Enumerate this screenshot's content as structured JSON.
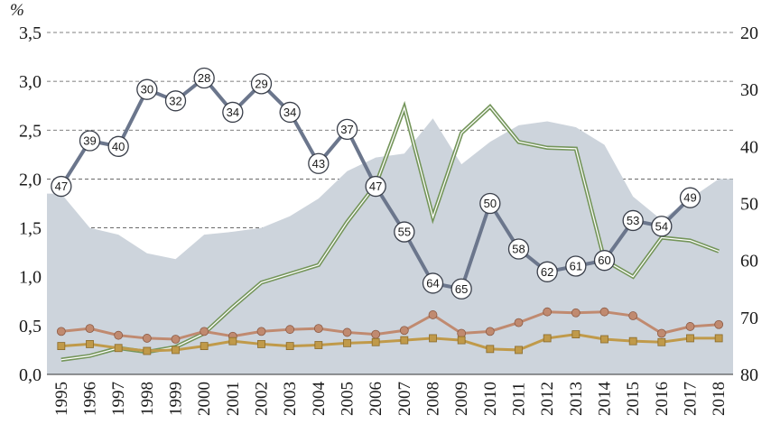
{
  "chart_data": {
    "type": "line",
    "title": "",
    "unit_label": "%",
    "categories": [
      "1995",
      "1996",
      "1997",
      "1998",
      "1999",
      "2000",
      "2001",
      "2002",
      "2003",
      "2004",
      "2005",
      "2006",
      "2007",
      "2008",
      "2009",
      "2010",
      "2011",
      "2012",
      "2013",
      "2014",
      "2015",
      "2016",
      "2017",
      "2018"
    ],
    "left_axis": {
      "ylim": [
        0,
        3.5
      ],
      "ticks": [
        "0,0",
        "0,5",
        "1,0",
        "1,5",
        "2,0",
        "2,5",
        "3,0",
        "3,5"
      ],
      "tick_values": [
        0,
        0.5,
        1,
        1.5,
        2,
        2.5,
        3,
        3.5
      ]
    },
    "right_axis": {
      "ylim": [
        20,
        80
      ],
      "inverted": true,
      "ticks": [
        "20",
        "30",
        "40",
        "50",
        "60",
        "70",
        "80"
      ],
      "tick_values": [
        20,
        30,
        40,
        50,
        60,
        70,
        80
      ]
    },
    "grid": true,
    "area_series": {
      "name": "background area",
      "color": "#cdd4dc",
      "values": [
        1.85,
        1.5,
        1.43,
        1.24,
        1.18,
        1.43,
        1.46,
        1.5,
        1.62,
        1.8,
        2.08,
        2.22,
        2.26,
        2.62,
        2.15,
        2.38,
        2.55,
        2.59,
        2.53,
        2.35,
        1.82,
        1.58,
        1.8,
        2.0
      ]
    },
    "rank_series": {
      "name": "rank",
      "axis": "right",
      "color": "#6b768c",
      "values": [
        47,
        39,
        40,
        30,
        32,
        28,
        34,
        29,
        34,
        43,
        37,
        47,
        55,
        64,
        65,
        50,
        58,
        62,
        61,
        60,
        53,
        54,
        49,
        null
      ]
    },
    "series": [
      {
        "name": "green double line",
        "color": "#74955a",
        "values": [
          0.15,
          0.19,
          0.27,
          0.23,
          0.28,
          0.42,
          0.69,
          0.94,
          1.03,
          1.12,
          1.56,
          1.94,
          2.73,
          1.61,
          2.47,
          2.74,
          2.38,
          2.32,
          2.31,
          1.17,
          1.0,
          1.4,
          1.37,
          1.26
        ]
      },
      {
        "name": "red circles",
        "color": "#c08a70",
        "values": [
          0.44,
          0.47,
          0.4,
          0.37,
          0.36,
          0.44,
          0.39,
          0.44,
          0.46,
          0.47,
          0.43,
          0.41,
          0.45,
          0.61,
          0.42,
          0.44,
          0.53,
          0.64,
          0.63,
          0.64,
          0.6,
          0.42,
          0.49,
          0.51
        ]
      },
      {
        "name": "yellow squares",
        "color": "#c09a4a",
        "values": [
          0.29,
          0.31,
          0.27,
          0.24,
          0.25,
          0.29,
          0.34,
          0.31,
          0.29,
          0.3,
          0.32,
          0.33,
          0.35,
          0.37,
          0.35,
          0.26,
          0.25,
          0.37,
          0.41,
          0.36,
          0.34,
          0.33,
          0.37,
          0.37
        ]
      }
    ],
    "xlabel": "",
    "ylabel": "%"
  }
}
